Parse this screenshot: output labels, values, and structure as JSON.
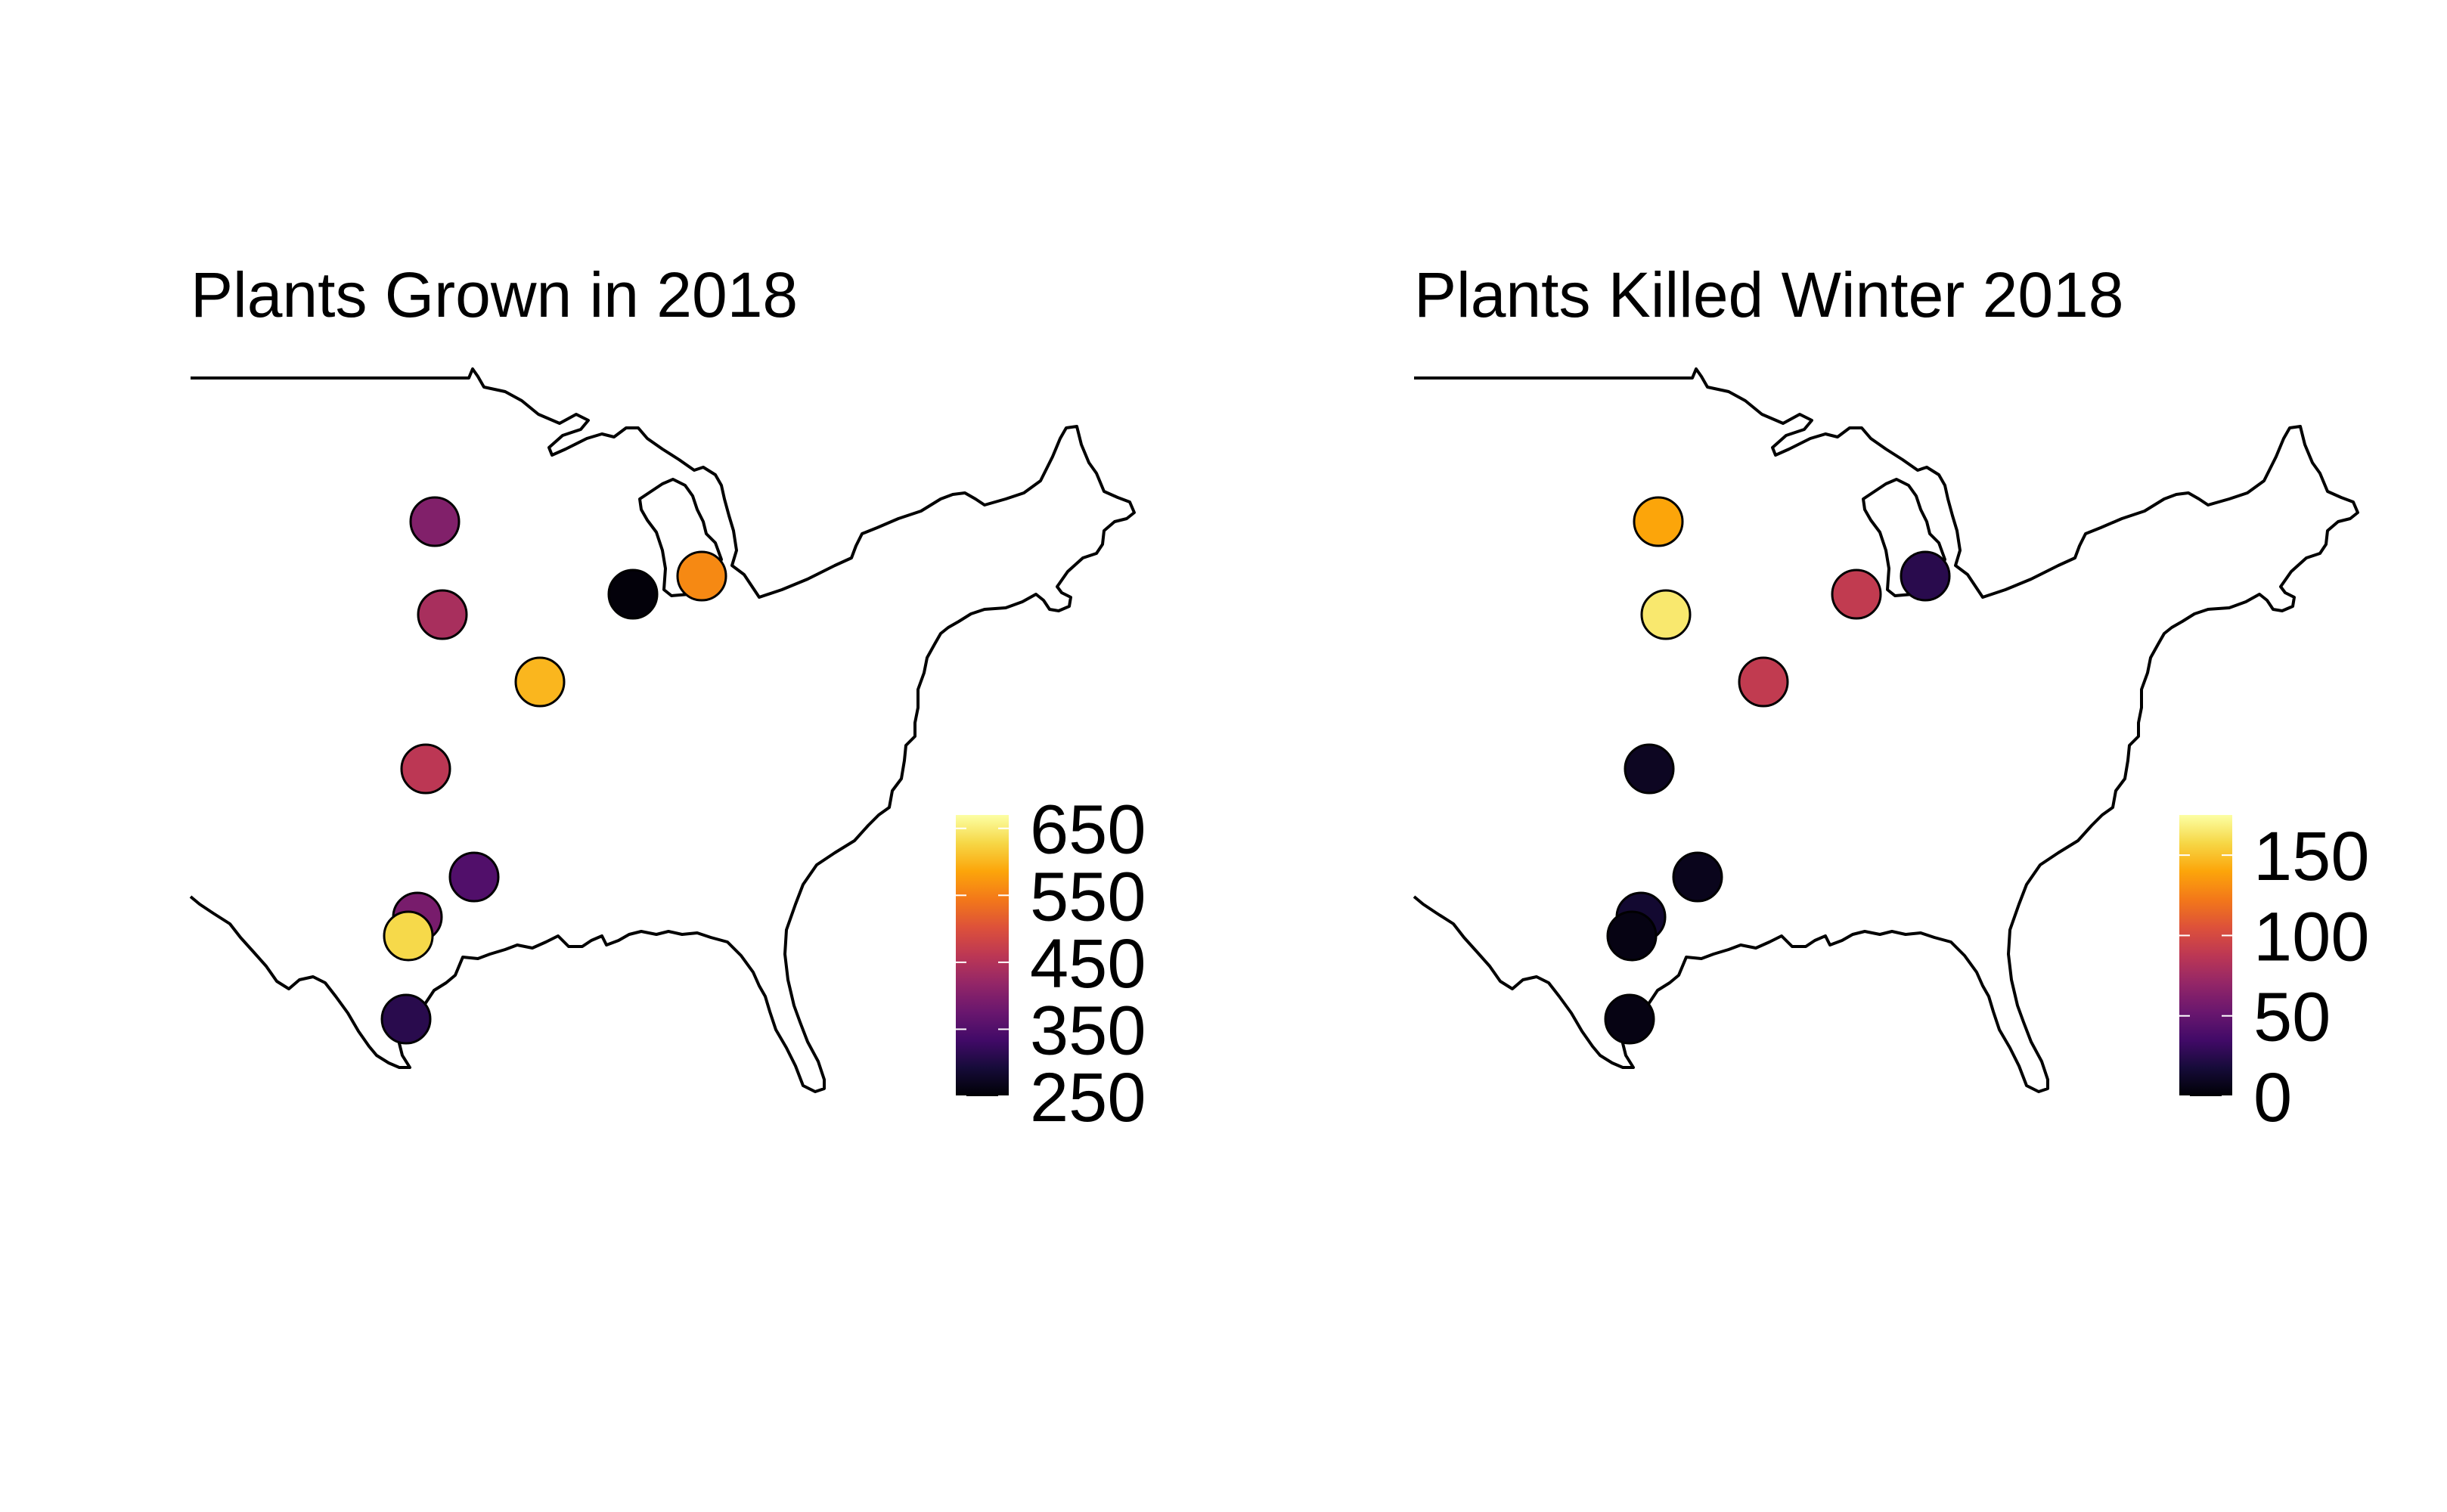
{
  "panels": [
    {
      "title": "Plants Grown in 2018",
      "legend": {
        "min": 250,
        "max": 670,
        "ticks": [
          650,
          550,
          450,
          350,
          250
        ]
      },
      "sites": [
        {
          "value": 400
        },
        {
          "value": 440
        },
        {
          "value": 600
        },
        {
          "value": 460
        },
        {
          "value": 255
        },
        {
          "value": 560
        },
        {
          "value": 350
        },
        {
          "value": 390
        },
        {
          "value": 630
        },
        {
          "value": 310
        }
      ]
    },
    {
      "title": "Plants Killed Winter 2018",
      "legend": {
        "min": 0,
        "max": 175,
        "ticks": [
          150,
          100,
          50,
          0
        ]
      },
      "sites": [
        {
          "value": 140
        },
        {
          "value": 165
        },
        {
          "value": 90
        },
        {
          "value": 10
        },
        {
          "value": 90
        },
        {
          "value": 25
        },
        {
          "value": 8
        },
        {
          "value": 15
        },
        {
          "value": 5
        },
        {
          "value": 5
        }
      ]
    }
  ],
  "colormap": "inferno"
}
